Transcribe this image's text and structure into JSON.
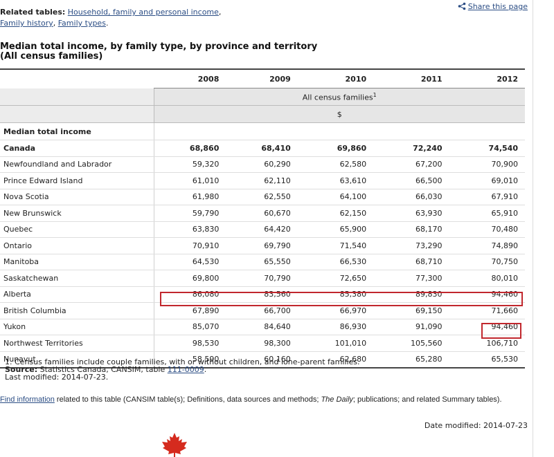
{
  "related": {
    "label": "Related tables:",
    "links": [
      "Household, family and personal income",
      "Family history",
      "Family types"
    ],
    "sep1": ",",
    "sep2": ",",
    "end": "."
  },
  "share": {
    "label": "Share this page"
  },
  "title_line1": "Median total income, by family type, by province and territory",
  "title_line2": "(All census families)",
  "table": {
    "years": [
      "2008",
      "2009",
      "2010",
      "2011",
      "2012"
    ],
    "subheader": "All census families",
    "subheader_sup": "1",
    "unit": "$",
    "section": "Median total income",
    "rows": [
      {
        "label": "Canada",
        "values": [
          "68,860",
          "68,410",
          "69,860",
          "72,240",
          "74,540"
        ]
      },
      {
        "label": "Newfoundland and Labrador",
        "values": [
          "59,320",
          "60,290",
          "62,580",
          "67,200",
          "70,900"
        ]
      },
      {
        "label": "Prince Edward Island",
        "values": [
          "61,010",
          "62,110",
          "63,610",
          "66,500",
          "69,010"
        ]
      },
      {
        "label": "Nova Scotia",
        "values": [
          "61,980",
          "62,550",
          "64,100",
          "66,030",
          "67,910"
        ]
      },
      {
        "label": "New Brunswick",
        "values": [
          "59,790",
          "60,670",
          "62,150",
          "63,930",
          "65,910"
        ]
      },
      {
        "label": "Quebec",
        "values": [
          "63,830",
          "64,420",
          "65,900",
          "68,170",
          "70,480"
        ]
      },
      {
        "label": "Ontario",
        "values": [
          "70,910",
          "69,790",
          "71,540",
          "73,290",
          "74,890"
        ]
      },
      {
        "label": "Manitoba",
        "values": [
          "64,530",
          "65,550",
          "66,530",
          "68,710",
          "70,750"
        ]
      },
      {
        "label": "Saskatchewan",
        "values": [
          "69,800",
          "70,790",
          "72,650",
          "77,300",
          "80,010"
        ]
      },
      {
        "label": "Alberta",
        "values": [
          "86,080",
          "83,560",
          "85,380",
          "89,830",
          "94,460"
        ]
      },
      {
        "label": "British Columbia",
        "values": [
          "67,890",
          "66,700",
          "66,970",
          "69,150",
          "71,660"
        ]
      },
      {
        "label": "Yukon",
        "values": [
          "85,070",
          "84,640",
          "86,930",
          "91,090",
          "94,460"
        ]
      },
      {
        "label": "Northwest Territories",
        "values": [
          "98,530",
          "98,300",
          "101,010",
          "105,560",
          "106,710"
        ]
      },
      {
        "label": "Nunavut",
        "values": [
          "58,590",
          "60,160",
          "62,680",
          "65,280",
          "65,530"
        ]
      }
    ]
  },
  "notes": {
    "footnote": "1. Census families include couple families, with or without children, and lone-parent families.",
    "source_label": "Source:",
    "source_text": " Statistics Canada, CANSIM, table ",
    "source_link": "111-0009",
    "source_end": ".",
    "last_modified": "Last modified: 2014-07-23."
  },
  "find": {
    "link": "Find information",
    "text1": " related to this table (CANSIM table(s); Definitions, data sources and methods; ",
    "daily": "The Daily",
    "text2": "; publications; and related Summary tables)."
  },
  "date_modified": "Date modified: 2014-07-23",
  "colors": {
    "link": "#2b4d84",
    "highlight": "#c1272d",
    "header_bg": "#e6e6e6",
    "leaf": "#d52b1e"
  },
  "icons": {
    "share": "share-icon",
    "footer": "maple-leaf-icon"
  }
}
